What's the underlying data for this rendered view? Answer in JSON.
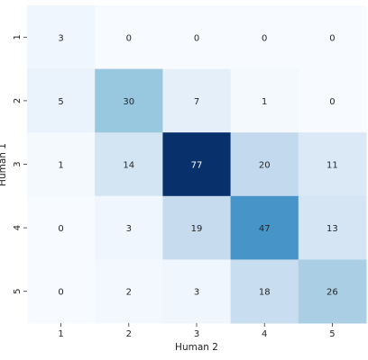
{
  "chart_data": {
    "type": "heatmap",
    "title": "",
    "xlabel": "Human 2",
    "ylabel": "Human 1",
    "x_categories": [
      "1",
      "2",
      "3",
      "4",
      "5"
    ],
    "y_categories": [
      "1",
      "2",
      "3",
      "4",
      "5"
    ],
    "values": [
      [
        3,
        0,
        0,
        0,
        0
      ],
      [
        5,
        30,
        7,
        1,
        0
      ],
      [
        1,
        14,
        77,
        20,
        11
      ],
      [
        0,
        3,
        19,
        47,
        13
      ],
      [
        0,
        2,
        3,
        18,
        26
      ]
    ],
    "colormap": "Blues",
    "color_range": [
      0,
      77
    ],
    "colorbar": false,
    "annotations": true
  }
}
